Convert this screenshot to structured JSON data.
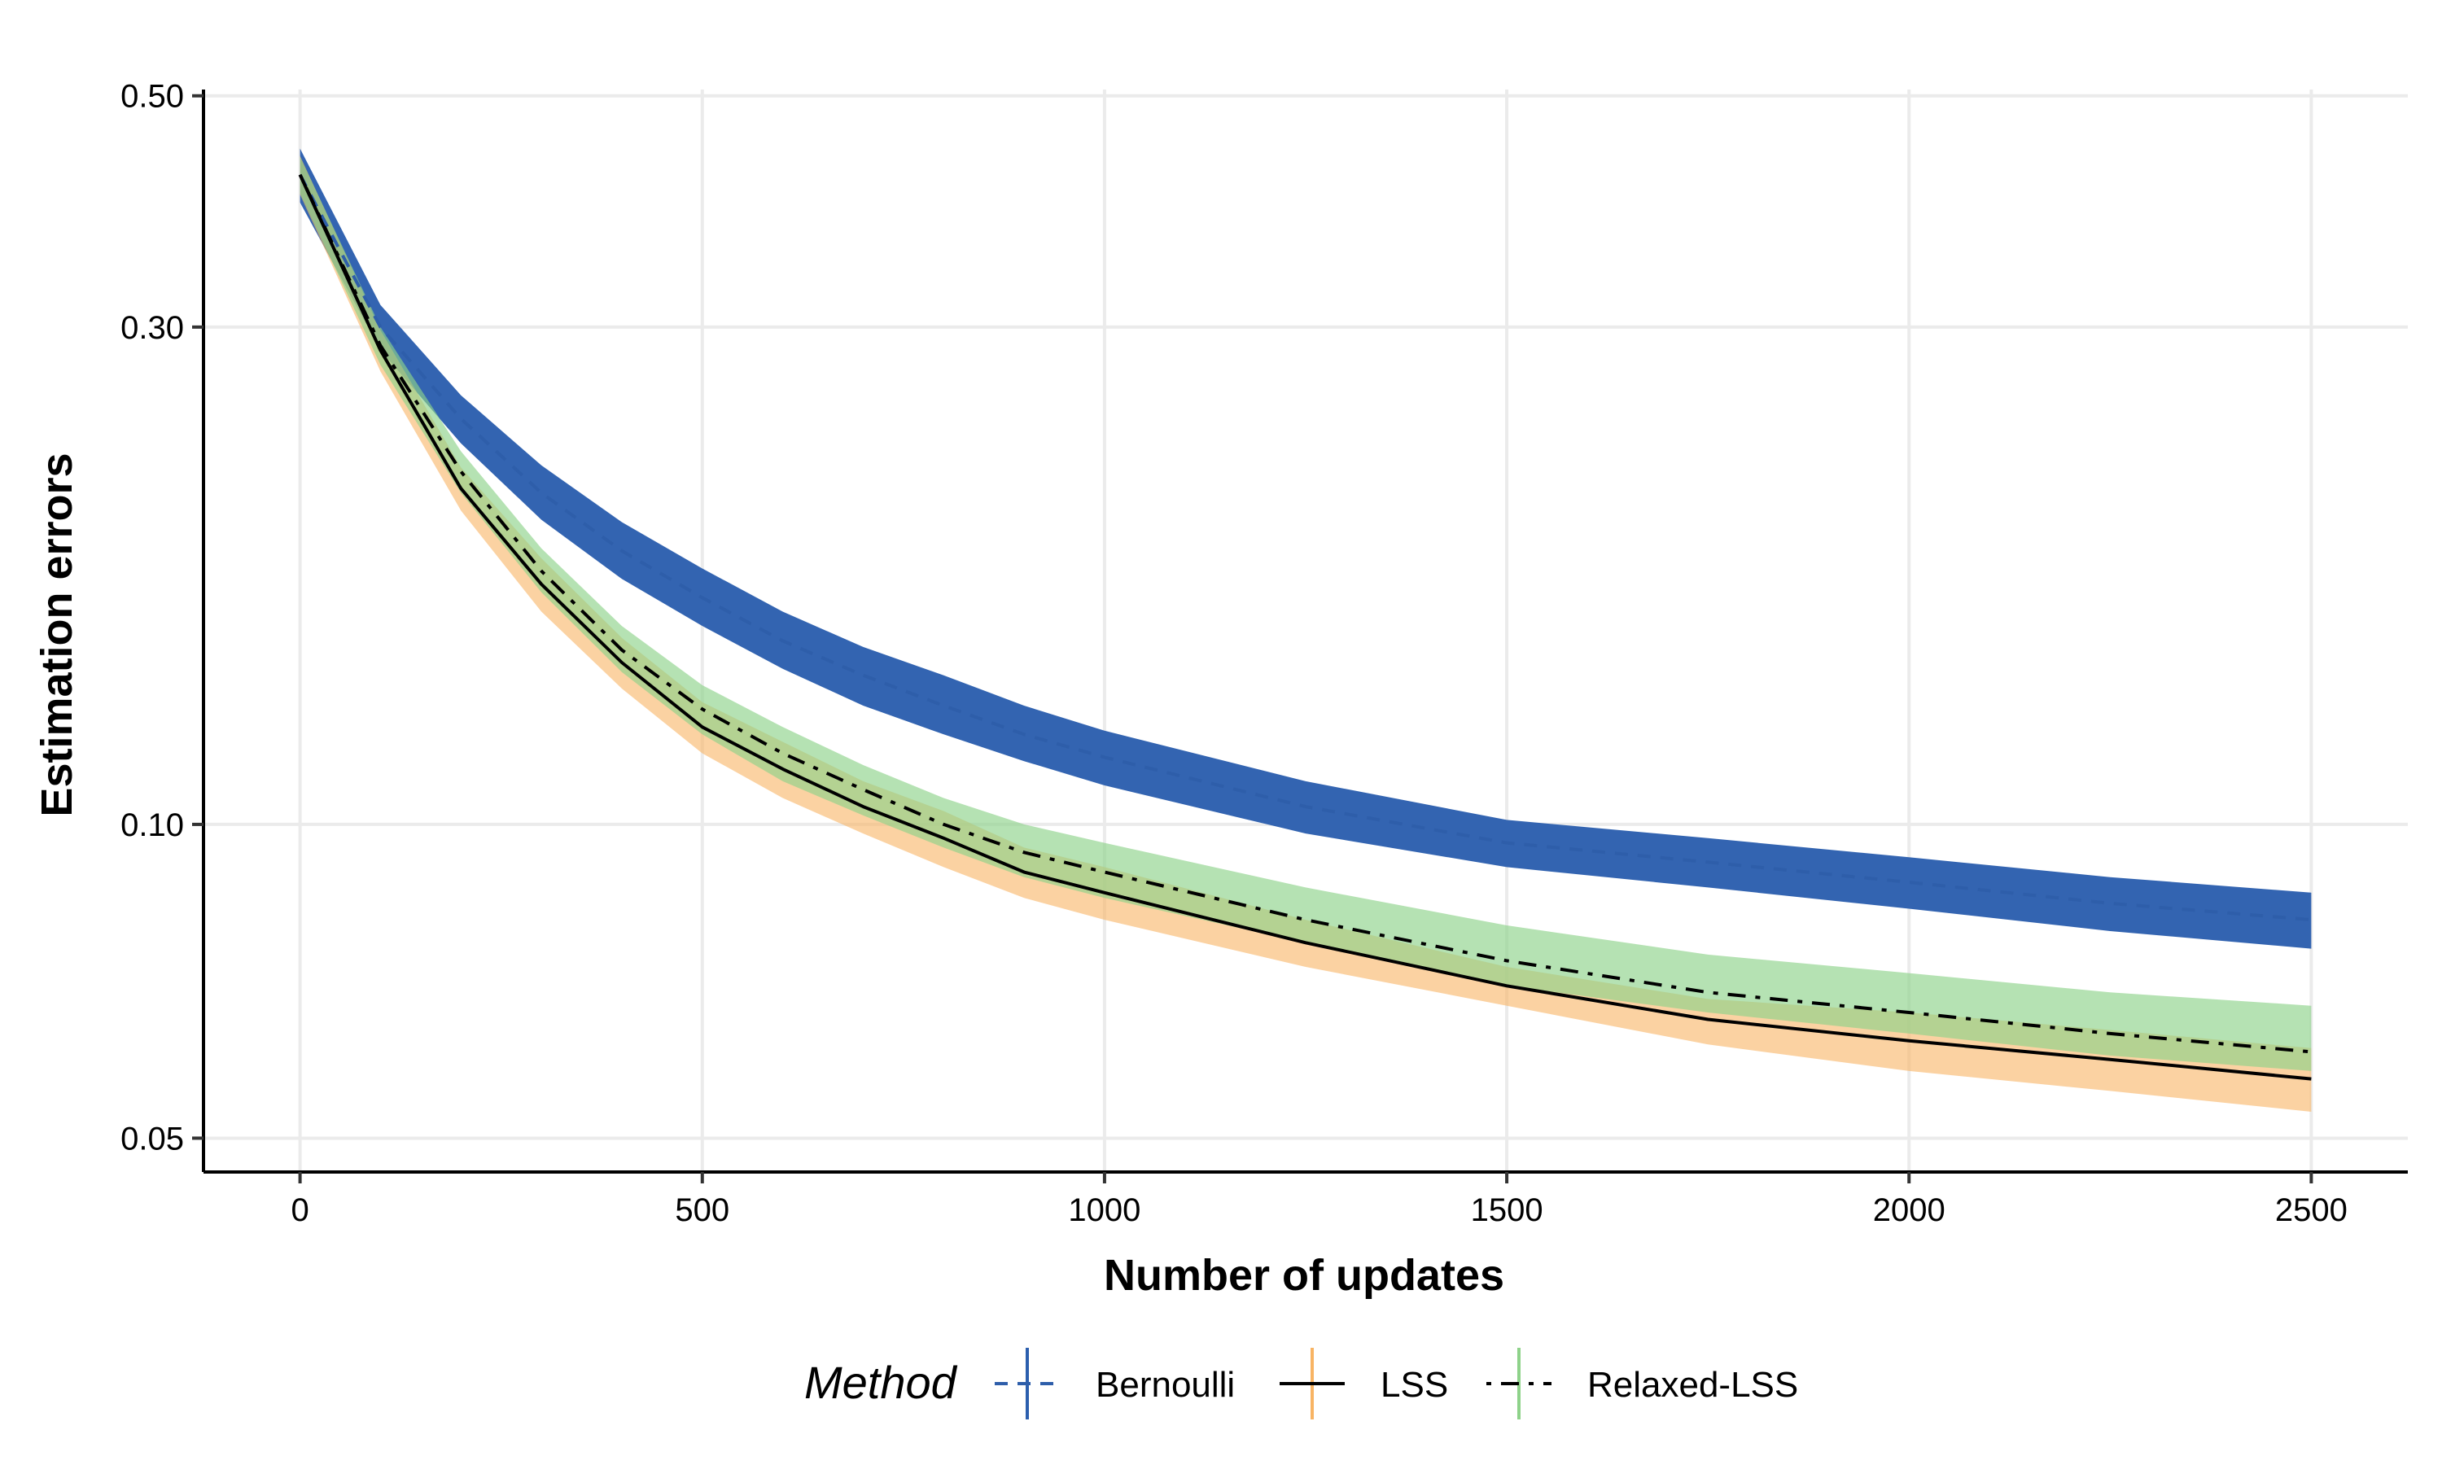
{
  "chart_data": {
    "type": "line",
    "xlabel": "Number of updates",
    "ylabel": "Estimation errors",
    "y_scale": "log",
    "xlim": [
      -120,
      2620
    ],
    "ylim": [
      0.0464,
      0.507
    ],
    "x_ticks": [
      0,
      500,
      1000,
      1500,
      2000,
      2500
    ],
    "x_tick_labels": [
      "0",
      "500",
      "1000",
      "1500",
      "2000",
      "2500"
    ],
    "y_ticks": [
      0.05,
      0.1,
      0.3,
      0.5
    ],
    "y_tick_labels": [
      "0.05",
      "0.10",
      "0.30",
      "0.50"
    ],
    "grid": true,
    "legend": {
      "title": "Method",
      "position": "bottom"
    },
    "series": [
      {
        "name": "Bernoulli",
        "color": "#2E5EAA",
        "band_color": "#2C5FAE",
        "band_opacity": 0.97,
        "line_style": "dashed",
        "x": [
          0,
          100,
          200,
          300,
          400,
          500,
          600,
          700,
          800,
          900,
          1000,
          1250,
          1500,
          1750,
          2000,
          2250,
          2500
        ],
        "y": [
          0.42,
          0.3,
          0.245,
          0.208,
          0.183,
          0.165,
          0.15,
          0.139,
          0.13,
          0.122,
          0.116,
          0.104,
          0.096,
          0.092,
          0.088,
          0.084,
          0.081
        ],
        "lower": [
          0.395,
          0.285,
          0.232,
          0.196,
          0.172,
          0.155,
          0.141,
          0.13,
          0.122,
          0.115,
          0.109,
          0.098,
          0.091,
          0.087,
          0.083,
          0.079,
          0.076
        ],
        "upper": [
          0.445,
          0.315,
          0.258,
          0.221,
          0.195,
          0.176,
          0.16,
          0.148,
          0.139,
          0.13,
          0.123,
          0.11,
          0.101,
          0.097,
          0.093,
          0.089,
          0.086
        ]
      },
      {
        "name": "LSS",
        "color": "#000000",
        "band_color": "#F8B464",
        "band_opacity": 0.6,
        "line_style": "solid",
        "x": [
          0,
          100,
          200,
          300,
          400,
          500,
          600,
          700,
          800,
          900,
          1000,
          1250,
          1500,
          1750,
          2000,
          2250,
          2500
        ],
        "y": [
          0.42,
          0.285,
          0.21,
          0.17,
          0.143,
          0.124,
          0.113,
          0.104,
          0.097,
          0.09,
          0.086,
          0.077,
          0.07,
          0.065,
          0.062,
          0.0595,
          0.057
        ],
        "lower": [
          0.402,
          0.272,
          0.2,
          0.16,
          0.135,
          0.117,
          0.106,
          0.098,
          0.091,
          0.085,
          0.081,
          0.073,
          0.067,
          0.0615,
          0.058,
          0.0555,
          0.053
        ],
        "upper": [
          0.438,
          0.298,
          0.22,
          0.18,
          0.151,
          0.131,
          0.12,
          0.11,
          0.103,
          0.095,
          0.091,
          0.081,
          0.073,
          0.068,
          0.066,
          0.0635,
          0.061
        ]
      },
      {
        "name": "Relaxed-LSS",
        "color": "#000000",
        "band_color": "#8ED28A",
        "band_opacity": 0.65,
        "line_style": "dotdash",
        "x": [
          0,
          100,
          200,
          300,
          400,
          500,
          600,
          700,
          800,
          900,
          1000,
          1250,
          1500,
          1750,
          2000,
          2250,
          2500
        ],
        "y": [
          0.42,
          0.288,
          0.218,
          0.175,
          0.147,
          0.129,
          0.117,
          0.108,
          0.1,
          0.094,
          0.09,
          0.081,
          0.074,
          0.069,
          0.066,
          0.063,
          0.0605
        ],
        "lower": [
          0.403,
          0.276,
          0.208,
          0.167,
          0.14,
          0.122,
          0.11,
          0.102,
          0.095,
          0.089,
          0.085,
          0.077,
          0.07,
          0.066,
          0.063,
          0.06,
          0.058
        ],
        "upper": [
          0.437,
          0.3,
          0.228,
          0.184,
          0.155,
          0.136,
          0.124,
          0.114,
          0.106,
          0.1,
          0.096,
          0.087,
          0.08,
          0.075,
          0.072,
          0.069,
          0.067
        ]
      }
    ]
  }
}
